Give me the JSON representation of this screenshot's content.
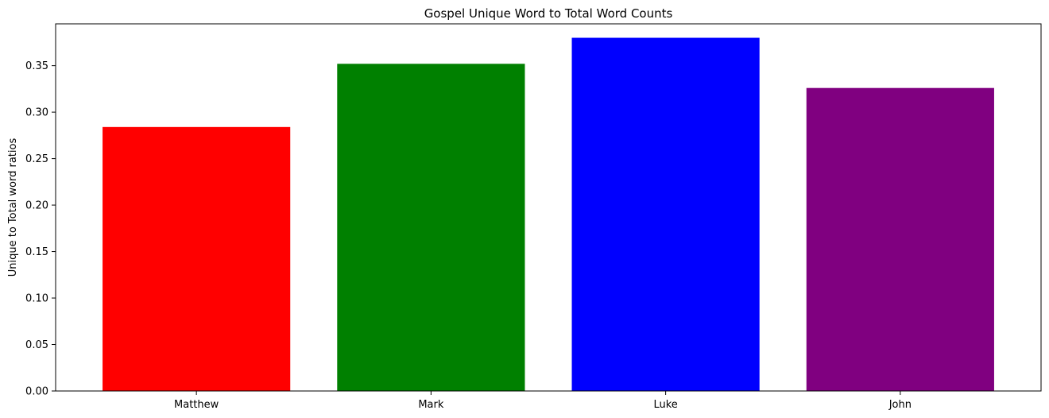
{
  "chart_data": {
    "type": "bar",
    "title": "Gospel Unique Word to Total Word Counts",
    "xlabel": "",
    "ylabel": "Unique to Total word ratios",
    "categories": [
      "Matthew",
      "Mark",
      "Luke",
      "John"
    ],
    "values": [
      0.284,
      0.352,
      0.38,
      0.326
    ],
    "colors": [
      "#ff0000",
      "#008000",
      "#0000ff",
      "#800080"
    ],
    "ylim": [
      0,
      0.395
    ],
    "yticks": [
      0.0,
      0.05,
      0.1,
      0.15,
      0.2,
      0.25,
      0.3,
      0.35
    ],
    "ytick_labels": [
      "0.00",
      "0.05",
      "0.10",
      "0.15",
      "0.20",
      "0.25",
      "0.30",
      "0.35"
    ],
    "grid": false,
    "legend": "none"
  }
}
